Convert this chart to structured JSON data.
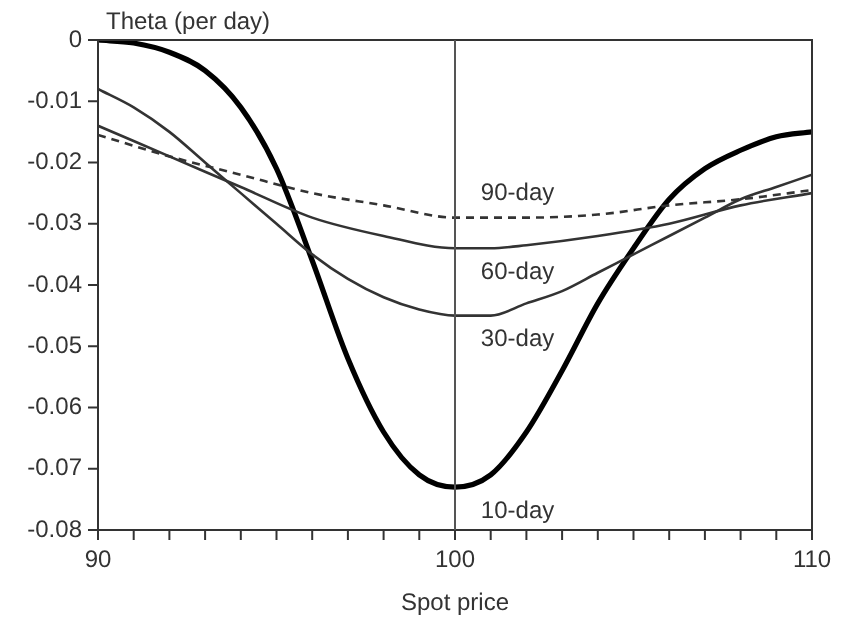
{
  "chart_data": {
    "type": "line",
    "ylabel": "Theta (per day)",
    "xlabel": "Spot price",
    "xlim": [
      90,
      110
    ],
    "ylim": [
      -0.08,
      0
    ],
    "xticks": [
      90,
      {
        "value": 91,
        "label": null
      },
      {
        "value": 92,
        "label": null
      },
      {
        "value": 93,
        "label": null
      },
      {
        "value": 94,
        "label": null
      },
      {
        "value": 95,
        "label": null
      },
      {
        "value": 96,
        "label": null
      },
      {
        "value": 97,
        "label": null
      },
      {
        "value": 98,
        "label": null
      },
      {
        "value": 99,
        "label": null
      },
      100,
      {
        "value": 101,
        "label": null
      },
      {
        "value": 102,
        "label": null
      },
      {
        "value": 103,
        "label": null
      },
      {
        "value": 104,
        "label": null
      },
      {
        "value": 105,
        "label": null
      },
      {
        "value": 106,
        "label": null
      },
      {
        "value": 107,
        "label": null
      },
      {
        "value": 108,
        "label": null
      },
      {
        "value": 109,
        "label": null
      },
      110
    ],
    "yticks": [
      0,
      -0.01,
      -0.02,
      -0.03,
      -0.04,
      -0.05,
      -0.06,
      -0.07,
      -0.08
    ],
    "grid": false,
    "legend": false,
    "marker": "none",
    "ref_lines": [
      {
        "axis": "x",
        "value": 100,
        "color": "#555555"
      }
    ],
    "series": [
      {
        "name": "90-day",
        "color": "#333333",
        "line_style": "dashed",
        "x": [
          90,
          92,
          94,
          96,
          98,
          100,
          102,
          104,
          106,
          108,
          110
        ],
        "values": [
          -0.0155,
          -0.019,
          -0.022,
          -0.025,
          -0.027,
          -0.029,
          -0.029,
          -0.0285,
          -0.027,
          -0.026,
          -0.0245
        ]
      },
      {
        "name": "60-day",
        "color": "#333333",
        "line_style": "solid",
        "x": [
          90,
          92,
          94,
          96,
          98,
          100,
          101,
          102,
          104,
          106,
          108,
          110
        ],
        "values": [
          -0.014,
          -0.019,
          -0.024,
          -0.029,
          -0.032,
          -0.034,
          -0.034,
          -0.0335,
          -0.032,
          -0.03,
          -0.027,
          -0.025
        ]
      },
      {
        "name": "30-day",
        "color": "#333333",
        "line_style": "solid",
        "x": [
          90,
          91,
          92,
          93,
          94,
          95,
          96,
          97,
          98,
          99,
          100,
          101,
          102,
          103,
          104,
          105,
          106,
          107,
          108,
          109,
          110
        ],
        "values": [
          -0.008,
          -0.011,
          -0.015,
          -0.02,
          -0.025,
          -0.03,
          -0.035,
          -0.039,
          -0.042,
          -0.044,
          -0.045,
          -0.045,
          -0.043,
          -0.041,
          -0.038,
          -0.035,
          -0.032,
          -0.029,
          -0.026,
          -0.024,
          -0.022
        ]
      },
      {
        "name": "10-day",
        "color": "#000000",
        "line_style": "solid",
        "x": [
          90,
          91,
          92,
          93,
          94,
          95,
          96,
          97,
          98,
          99,
          100,
          101,
          102,
          103,
          104,
          105,
          106,
          107,
          108,
          109,
          110
        ],
        "values": [
          0,
          -0.0005,
          -0.002,
          -0.005,
          -0.011,
          -0.021,
          -0.036,
          -0.052,
          -0.064,
          -0.071,
          -0.073,
          -0.071,
          -0.064,
          -0.054,
          -0.043,
          -0.034,
          -0.026,
          -0.021,
          -0.018,
          -0.0158,
          -0.015
        ]
      }
    ]
  }
}
